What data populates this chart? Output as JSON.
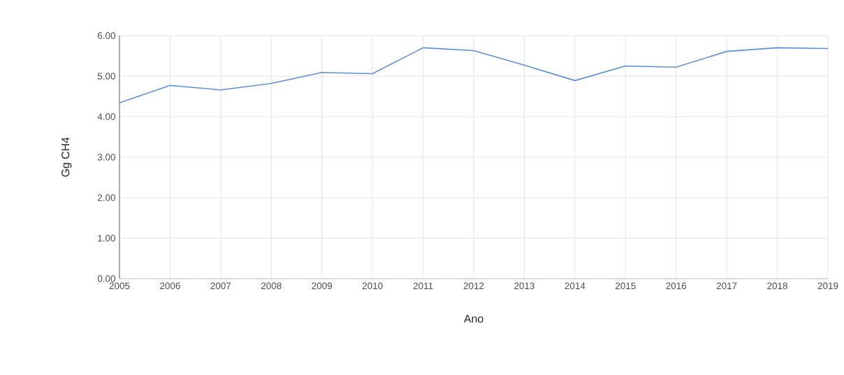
{
  "chart_data": {
    "type": "line",
    "xlabel": "Ano",
    "ylabel": "Gg CH4",
    "x": [
      2005,
      2006,
      2007,
      2008,
      2009,
      2010,
      2011,
      2012,
      2013,
      2014,
      2015,
      2016,
      2017,
      2018,
      2019
    ],
    "series": [
      {
        "color": "#5b8fe0",
        "values": [
          4.34,
          4.77,
          4.66,
          4.82,
          5.09,
          5.06,
          5.7,
          5.63,
          5.27,
          4.89,
          5.25,
          5.22,
          5.61,
          5.7,
          5.68
        ]
      }
    ],
    "xlim": [
      2005,
      2019
    ],
    "xticks": [
      2005,
      2006,
      2007,
      2008,
      2009,
      2010,
      2011,
      2012,
      2013,
      2014,
      2015,
      2016,
      2017,
      2018,
      2019
    ],
    "ylim": [
      0,
      6
    ],
    "yticks": [
      {
        "value": 0,
        "label": "0.00"
      },
      {
        "value": 1,
        "label": "1.00"
      },
      {
        "value": 2,
        "label": "2.00"
      },
      {
        "value": 3,
        "label": "3.00"
      },
      {
        "value": 4,
        "label": "4.00"
      },
      {
        "value": 5,
        "label": "5.00"
      },
      {
        "value": 6,
        "label": "6.00"
      }
    ],
    "grid": true
  }
}
